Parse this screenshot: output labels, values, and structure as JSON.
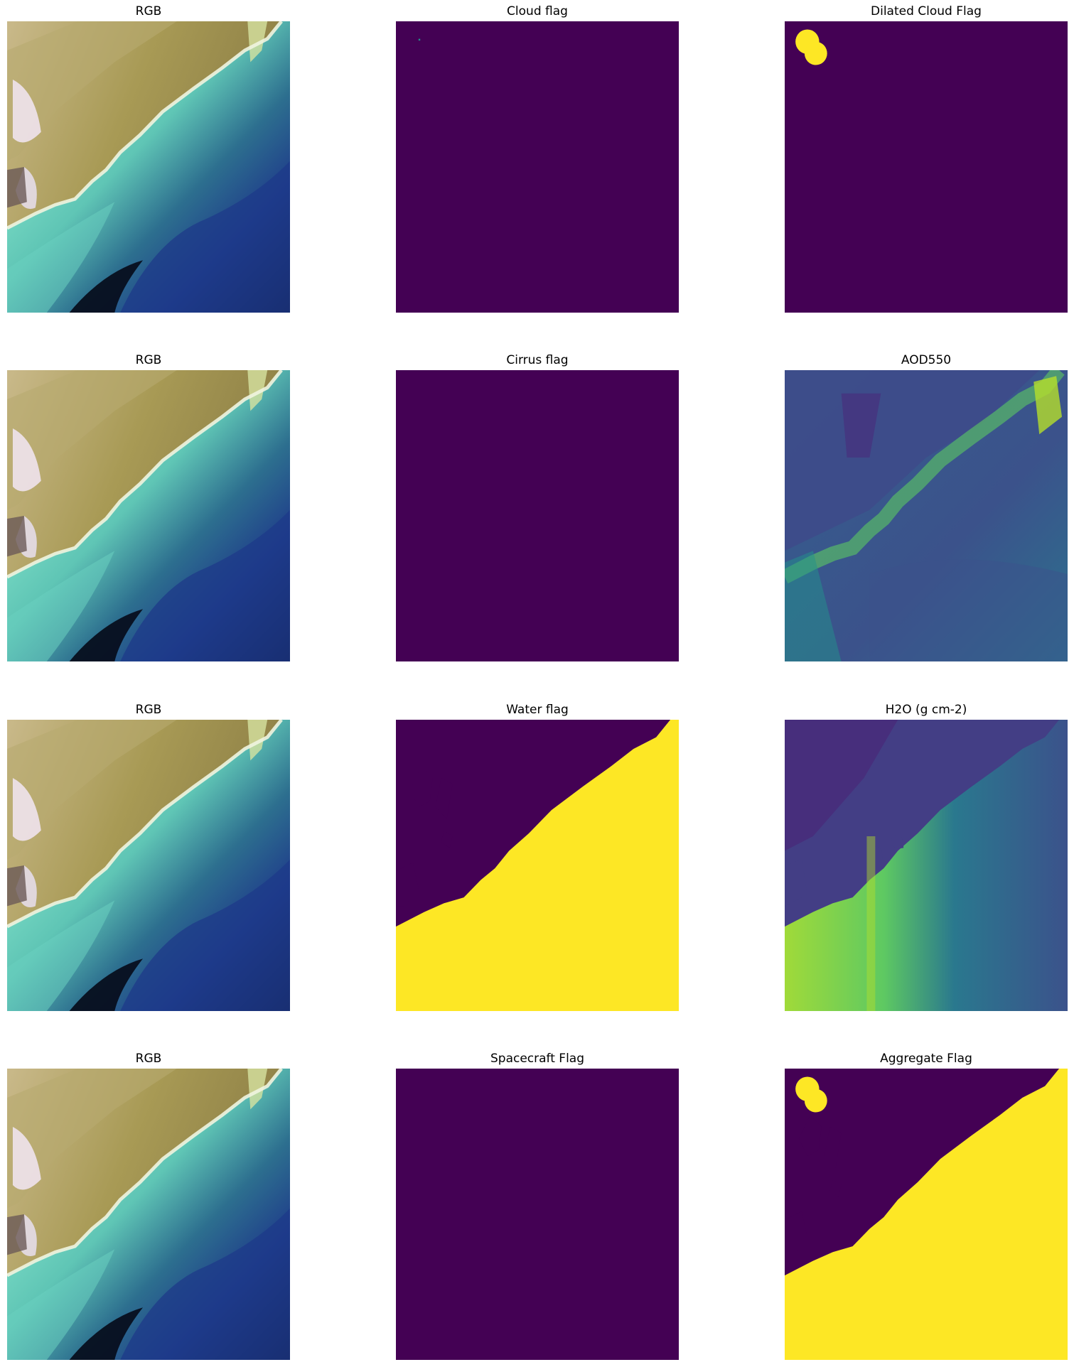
{
  "panels": [
    {
      "title": "RGB",
      "kind": "rgb"
    },
    {
      "title": "Cloud flag",
      "kind": "cloud"
    },
    {
      "title": "Dilated Cloud Flag",
      "kind": "dilated"
    },
    {
      "title": "RGB",
      "kind": "rgb"
    },
    {
      "title": "Cirrus flag",
      "kind": "empty"
    },
    {
      "title": "AOD550",
      "kind": "aod"
    },
    {
      "title": "RGB",
      "kind": "rgb"
    },
    {
      "title": "Water flag",
      "kind": "water"
    },
    {
      "title": "H2O (g cm-2)",
      "kind": "h2o"
    },
    {
      "title": "RGB",
      "kind": "rgb"
    },
    {
      "title": "Spacecraft Flag",
      "kind": "empty"
    },
    {
      "title": "Aggregate Flag",
      "kind": "aggregate"
    }
  ],
  "colors": {
    "flag_false": "#440154",
    "flag_true": "#fde725",
    "viridis_mid": "#21918c",
    "viridis_light": "#5ec962",
    "land_tan": "#a89a55",
    "shallow_cyan": "#7fe0c8",
    "deep_blue": "#1f3d8a"
  }
}
